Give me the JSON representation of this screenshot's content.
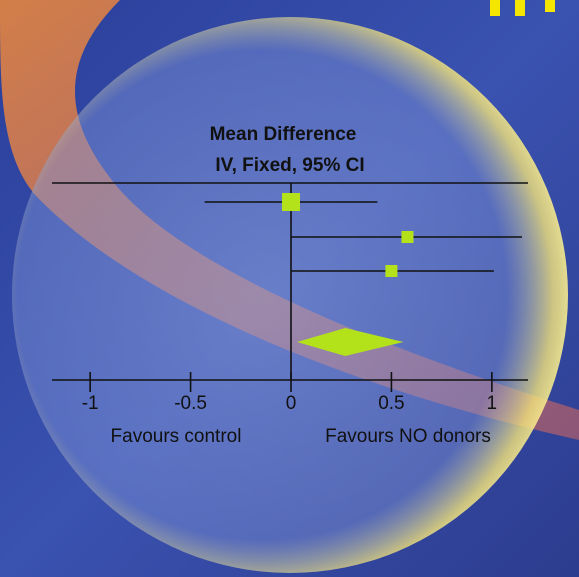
{
  "chart_data": {
    "type": "forest",
    "title": "Mean Difference",
    "subtitle": "IV, Fixed, 95% CI",
    "estimates": [
      0,
      0.58,
      0.5
    ],
    "lower": [
      -0.43,
      0,
      0
    ],
    "upper": [
      0.43,
      1.15,
      1.01
    ],
    "summary": {
      "estimate": 0.27,
      "lower": 0.03,
      "upper": 0.56
    },
    "xlim": [
      -1.19,
      1.18
    ],
    "xticks": [
      -1,
      -0.5,
      0,
      0.5,
      1
    ],
    "x_left_label": "Favours control",
    "x_right_label": "Favours NO donors",
    "color": "#b4e21a"
  }
}
